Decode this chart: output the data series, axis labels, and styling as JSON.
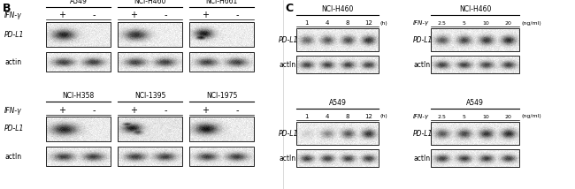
{
  "bg_color": "#ffffff",
  "panel_B_label": "B",
  "panel_C_label": "C",
  "row1_titles": [
    "A549",
    "NCI-H460",
    "NCI-H661"
  ],
  "row2_titles": [
    "NCI-H358",
    "NCI-1395",
    "NCI-1975"
  ],
  "ifn_label": "IFN-γ",
  "pdl1_label": "PD-L1",
  "actin_label": "actin",
  "actIn_label": "actIn",
  "c_top_left_title": "NCI-H460",
  "c_top_right_title": "NCI-H460",
  "c_bot_left_title": "A549",
  "c_bot_right_title": "A549",
  "c_time_labels": [
    "1",
    "4",
    "8",
    "12",
    "(h)"
  ],
  "c_dose_labels": [
    "2.5",
    "5",
    "10",
    "20",
    "(ng/ml)"
  ],
  "c_ifn_label": "IFN-γ",
  "c_pdl1_label": "PD-L1",
  "c_actin_label": "actIn"
}
